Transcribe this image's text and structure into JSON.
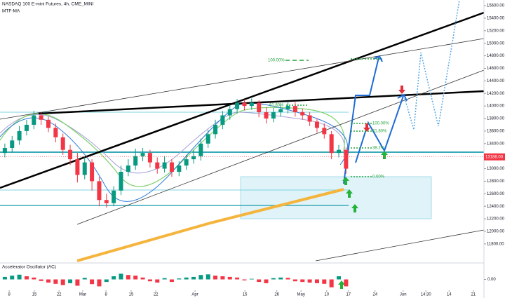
{
  "chart_data": [
    {
      "type": "candlestick",
      "title": "NASDAQ 100 E-mini Futures, 4h, CME_MINI",
      "subtitle": "MTF-MA",
      "x": [
        1,
        2.5,
        4,
        5.5,
        7,
        8.5,
        10,
        11.5,
        13,
        14.5,
        16,
        17.5,
        19,
        20.5,
        22,
        23.5,
        25,
        26.5,
        28,
        29.5,
        31,
        32.5,
        34,
        35.5,
        37,
        38.5,
        40,
        41.5,
        43,
        44.5,
        46,
        47.5,
        49,
        50.5,
        52,
        53.5,
        55,
        56.5,
        58,
        59.5,
        61,
        62.5,
        64,
        65.5,
        67,
        68.5,
        70,
        71.5
      ],
      "open": [
        13250,
        13330,
        13450,
        13600,
        13700,
        13850,
        13780,
        13650,
        13500,
        13300,
        13150,
        12900,
        13100,
        12800,
        12500,
        12450,
        12650,
        12950,
        13050,
        13200,
        13250,
        13100,
        13000,
        13100,
        12950,
        13050,
        13150,
        13200,
        13400,
        13550,
        13700,
        13850,
        13950,
        14050,
        14000,
        14050,
        13900,
        13800,
        13900,
        13950,
        14000,
        13900,
        13850,
        13750,
        13650,
        13550,
        13250,
        13300
      ],
      "high": [
        13400,
        13520,
        13680,
        13780,
        13920,
        13900,
        13830,
        13720,
        13560,
        13380,
        13250,
        13180,
        13150,
        12870,
        12600,
        12720,
        13050,
        13150,
        13320,
        13330,
        13300,
        13180,
        13200,
        13150,
        13120,
        13220,
        13300,
        13480,
        13620,
        13780,
        13920,
        14020,
        14110,
        14100,
        14120,
        14090,
        13980,
        13970,
        14020,
        14070,
        14060,
        13960,
        13900,
        13800,
        13720,
        13600,
        13380,
        13340
      ],
      "low": [
        13180,
        13260,
        13380,
        13530,
        13630,
        13700,
        13580,
        13420,
        13220,
        13060,
        12780,
        12830,
        12650,
        12400,
        12380,
        12400,
        12580,
        12880,
        12980,
        13120,
        13020,
        12920,
        12940,
        12870,
        12880,
        12980,
        13080,
        13130,
        13330,
        13480,
        13630,
        13780,
        13880,
        13930,
        13940,
        13820,
        13720,
        13740,
        13830,
        13880,
        13830,
        13780,
        13680,
        13580,
        13480,
        13150,
        13180,
        12920
      ],
      "close": [
        13330,
        13450,
        13600,
        13700,
        13850,
        13780,
        13650,
        13500,
        13300,
        13150,
        12900,
        13100,
        12800,
        12500,
        12450,
        12650,
        12950,
        13050,
        13200,
        13250,
        13100,
        13000,
        13100,
        12950,
        13050,
        13150,
        13200,
        13400,
        13550,
        13700,
        13850,
        13950,
        14050,
        14000,
        14050,
        13900,
        13800,
        13900,
        13950,
        14000,
        13900,
        13850,
        13750,
        13650,
        13550,
        13250,
        13300,
        13000
      ],
      "up_color": "#089981",
      "down_color": "#f23645",
      "xlim": [
        0,
        100
      ],
      "ylim": [
        11530,
        15690
      ],
      "yticks": [
        {
          "value": 15600,
          "label": "15600.00"
        },
        {
          "value": 15400,
          "label": "15400.00"
        },
        {
          "value": 15200,
          "label": "15200.00"
        },
        {
          "value": 15000,
          "label": "15000.00"
        },
        {
          "value": 14800,
          "label": "14800.00"
        },
        {
          "value": 14600,
          "label": "14600.00"
        },
        {
          "value": 14400,
          "label": "14400.00"
        },
        {
          "value": 14200,
          "label": "14200.00"
        },
        {
          "value": 14000,
          "label": "14000.00"
        },
        {
          "value": 13800,
          "label": "13800.00"
        },
        {
          "value": 13600,
          "label": "13600.00"
        },
        {
          "value": 13400,
          "label": "13400.00"
        },
        {
          "value": 13000,
          "label": "13000.00"
        },
        {
          "value": 12800,
          "label": "12800.00"
        },
        {
          "value": 12600,
          "label": "12600.00"
        },
        {
          "value": 12400,
          "label": "12400.00"
        },
        {
          "value": 12200,
          "label": "12200.00"
        },
        {
          "value": 12000,
          "label": "12000.00"
        },
        {
          "value": 11800,
          "label": "11800.00"
        }
      ],
      "xticks": [
        {
          "value": 1.9,
          "label": "8"
        },
        {
          "value": 7.1,
          "label": "15"
        },
        {
          "value": 12.2,
          "label": "22"
        },
        {
          "value": 17.1,
          "label": "Mar"
        },
        {
          "value": 21.9,
          "label": "8"
        },
        {
          "value": 27.1,
          "label": "15"
        },
        {
          "value": 32.2,
          "label": "22"
        },
        {
          "value": 40.3,
          "label": "Apr"
        },
        {
          "value": 50.6,
          "label": "15"
        },
        {
          "value": 57.2,
          "label": "26"
        },
        {
          "value": 62.2,
          "label": "May"
        },
        {
          "value": 67.5,
          "label": "10"
        },
        {
          "value": 72,
          "label": "17"
        },
        {
          "value": 77.5,
          "label": "24"
        },
        {
          "value": 83.3,
          "label": "Jun"
        },
        {
          "value": 88,
          "label": "14:30"
        },
        {
          "value": 92.8,
          "label": "14"
        },
        {
          "value": 97.8,
          "label": "21"
        }
      ],
      "last_price": {
        "value": 13188,
        "label": "13188.00"
      },
      "annotations": [
        "100.00%",
        "61.80%",
        "100.00%",
        "61.80%",
        "38.2%",
        "0.00%"
      ]
    },
    {
      "type": "bar",
      "title": "Accelerator Oscillator (AC)",
      "values": [
        8,
        12,
        15,
        10,
        6,
        -5,
        -10,
        -14,
        -18,
        -12,
        -20,
        5,
        -15,
        -22,
        -8,
        10,
        18,
        14,
        12,
        6,
        -6,
        -10,
        4,
        -8,
        3,
        6,
        8,
        14,
        16,
        12,
        10,
        8,
        6,
        -3,
        2,
        -8,
        -12,
        4,
        6,
        5,
        -6,
        -8,
        -10,
        -12,
        -14,
        -25,
        10,
        -22
      ],
      "up_color": "#089981",
      "down_color": "#f23645",
      "ylim": [
        -30,
        30
      ],
      "yticks": [
        {
          "value": 0,
          "label": "0.00"
        }
      ]
    }
  ]
}
